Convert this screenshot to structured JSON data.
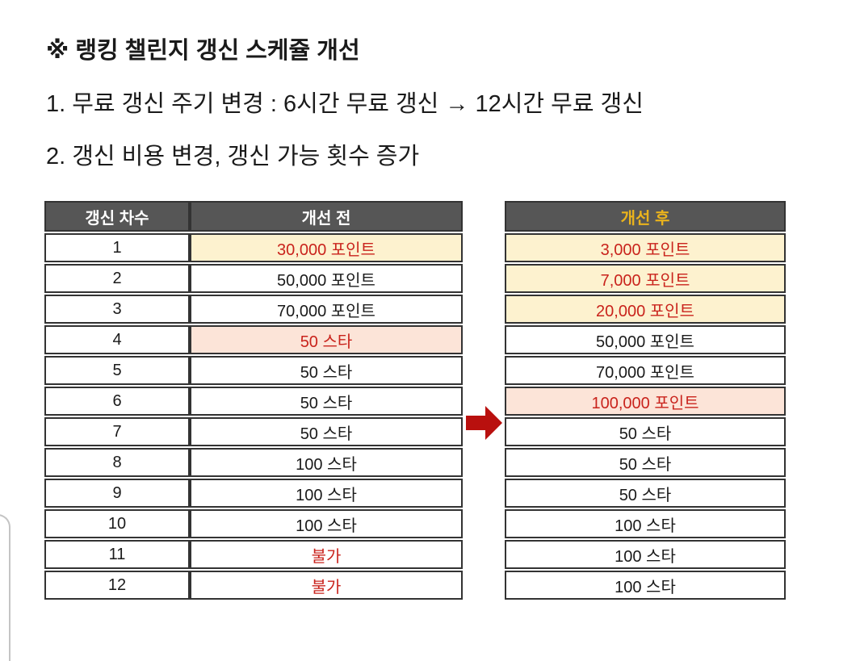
{
  "page": {
    "title": "※ 랭킹 챌린지 갱신 스케쥴 개선",
    "line1": "1. 무료 갱신 주기 변경 : 6시간 무료 갱신 → 12시간 무료 갱신",
    "line2": "2. 갱신 비용 변경, 갱신 가능 횟수 증가"
  },
  "colors": {
    "header-bg": "#565656",
    "header-text": "#ffffff",
    "header-after-text": "#eab31c",
    "cell-red": "#c9231c",
    "cream-bg": "#fdf2cf",
    "pink-bg": "#fce4d8",
    "border": "#333333",
    "arrow": "#b9100e",
    "text": "#1a1a1a",
    "corner-line": "#c4c4c4"
  },
  "tables": {
    "headers": {
      "round": "갱신 차수",
      "before": "개선 전",
      "after": "개선 후"
    },
    "rows": [
      {
        "round": "1",
        "before": {
          "text": "30,000 포인트",
          "style": "red-cream"
        },
        "after": {
          "text": "3,000 포인트",
          "style": "red-cream"
        }
      },
      {
        "round": "2",
        "before": {
          "text": "50,000 포인트",
          "style": "normal"
        },
        "after": {
          "text": "7,000 포인트",
          "style": "red-cream"
        }
      },
      {
        "round": "3",
        "before": {
          "text": "70,000 포인트",
          "style": "normal"
        },
        "after": {
          "text": "20,000 포인트",
          "style": "red-cream"
        }
      },
      {
        "round": "4",
        "before": {
          "text": "50 스타",
          "style": "red-pink"
        },
        "after": {
          "text": "50,000 포인트",
          "style": "normal"
        }
      },
      {
        "round": "5",
        "before": {
          "text": "50 스타",
          "style": "normal"
        },
        "after": {
          "text": "70,000 포인트",
          "style": "normal"
        }
      },
      {
        "round": "6",
        "before": {
          "text": "50 스타",
          "style": "normal"
        },
        "after": {
          "text": "100,000 포인트",
          "style": "red-pink"
        }
      },
      {
        "round": "7",
        "before": {
          "text": "50 스타",
          "style": "normal"
        },
        "after": {
          "text": "50 스타",
          "style": "normal"
        }
      },
      {
        "round": "8",
        "before": {
          "text": "100 스타",
          "style": "normal"
        },
        "after": {
          "text": "50 스타",
          "style": "normal"
        }
      },
      {
        "round": "9",
        "before": {
          "text": "100 스타",
          "style": "normal"
        },
        "after": {
          "text": "50 스타",
          "style": "normal"
        }
      },
      {
        "round": "10",
        "before": {
          "text": "100 스타",
          "style": "normal"
        },
        "after": {
          "text": "100 스타",
          "style": "normal"
        }
      },
      {
        "round": "11",
        "before": {
          "text": "불가",
          "style": "red"
        },
        "after": {
          "text": "100 스타",
          "style": "normal"
        }
      },
      {
        "round": "12",
        "before": {
          "text": "불가",
          "style": "red"
        },
        "after": {
          "text": "100 스타",
          "style": "normal"
        }
      }
    ]
  },
  "arrow": {
    "name": "red-right-arrow"
  }
}
